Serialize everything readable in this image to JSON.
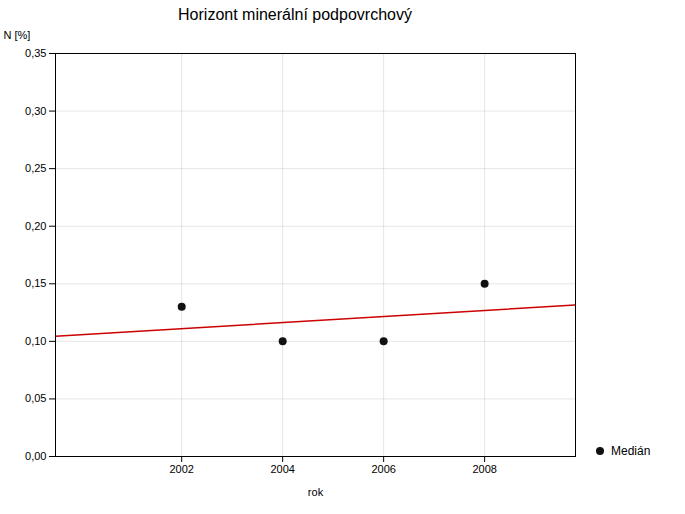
{
  "chart_data": {
    "type": "scatter",
    "title": "Horizont minerální podpovrchový",
    "xlabel": "rok",
    "ylabel": "N [%]",
    "series": [
      {
        "type": "line",
        "color": "#cc0000",
        "line_style": "solid",
        "x": [
          1999.5,
          2009.8
        ],
        "values": [
          0.1045,
          0.1315
        ]
      },
      {
        "type": "scatter",
        "name": "Medián",
        "color": "#111111",
        "marker": "circle",
        "x": [
          2002,
          2004,
          2006,
          2008
        ],
        "values": [
          0.13,
          0.1,
          0.1,
          0.15
        ]
      }
    ],
    "xlim": [
      1999.5,
      2009.8
    ],
    "xticks": [
      2002,
      2004,
      2006,
      2008
    ],
    "ylim": [
      0.0,
      0.35
    ],
    "yticks": [
      {
        "value": 0.0,
        "label": "0,00"
      },
      {
        "value": 0.05,
        "label": "0,05"
      },
      {
        "value": 0.1,
        "label": "0,10"
      },
      {
        "value": 0.15,
        "label": "0,15"
      },
      {
        "value": 0.2,
        "label": "0,20"
      },
      {
        "value": 0.25,
        "label": "0,25"
      },
      {
        "value": 0.3,
        "label": "0,30"
      },
      {
        "value": 0.35,
        "label": "0,35"
      }
    ],
    "grid": true,
    "legend": "right"
  }
}
